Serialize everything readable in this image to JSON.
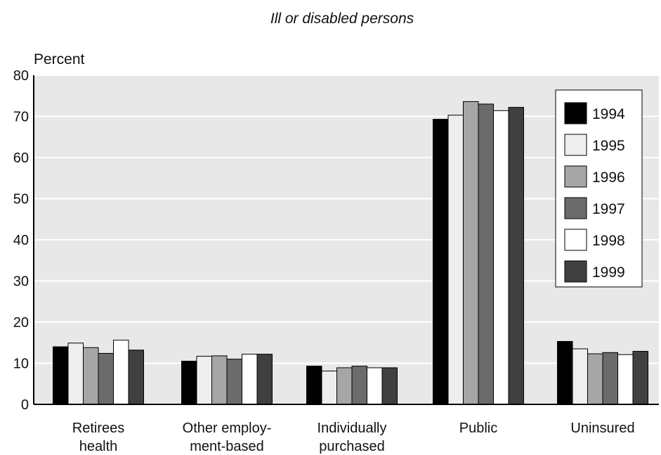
{
  "chart_data": {
    "type": "bar",
    "title": "Ill or disabled persons",
    "ylabel": "Percent",
    "xlabel": "",
    "ylim": [
      0,
      80
    ],
    "yticks": [
      0,
      10,
      20,
      30,
      40,
      50,
      60,
      70,
      80
    ],
    "grid": true,
    "legend_position": "top-right",
    "categories": [
      [
        "Retirees",
        "health"
      ],
      [
        "Other employ-",
        "ment-based"
      ],
      [
        "Individually",
        "purchased"
      ],
      [
        "Public"
      ],
      [
        "Uninsured"
      ]
    ],
    "series": [
      {
        "name": "1994",
        "color": "#000000",
        "values": [
          14.0,
          10.5,
          9.3,
          69.3,
          15.3
        ]
      },
      {
        "name": "1995",
        "color": "#eeeeee",
        "values": [
          14.9,
          11.7,
          8.1,
          70.3,
          13.5
        ]
      },
      {
        "name": "1996",
        "color": "#a6a6a6",
        "values": [
          13.8,
          11.8,
          8.9,
          73.6,
          12.3
        ]
      },
      {
        "name": "1997",
        "color": "#6b6b6b",
        "values": [
          12.4,
          11.0,
          9.3,
          73.0,
          12.6
        ]
      },
      {
        "name": "1998",
        "color": "#ffffff",
        "values": [
          15.6,
          12.2,
          8.9,
          71.4,
          12.1
        ]
      },
      {
        "name": "1999",
        "color": "#404040",
        "values": [
          13.2,
          12.2,
          8.9,
          72.2,
          12.9
        ]
      }
    ],
    "colors": {
      "plot_background": "#e8e8e8",
      "gridline": "#ffffff",
      "axis": "#000000"
    }
  }
}
